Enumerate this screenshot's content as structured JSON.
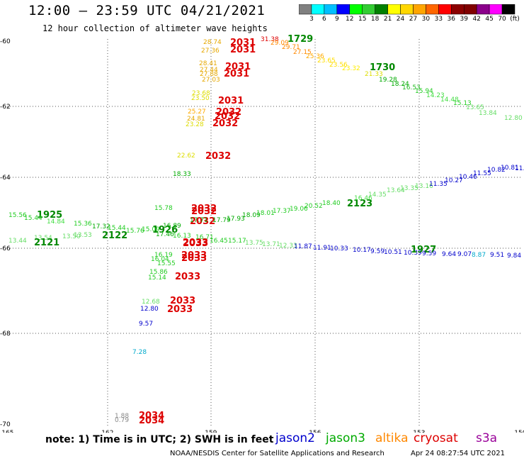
{
  "title": "12:00 – 23:59 UTC 04/21/2021",
  "subtitle": "12 hour collection of altimeter wave heights",
  "colorbar": {
    "ticks": [
      "3",
      "6",
      "9",
      "12",
      "15",
      "18",
      "21",
      "24",
      "27",
      "30",
      "33",
      "36",
      "39",
      "42",
      "45",
      "70",
      "(ft)"
    ],
    "colors": [
      "#808080",
      "#00ffff",
      "#00bfff",
      "#0000ff",
      "#00ff00",
      "#32cd32",
      "#008000",
      "#ffff00",
      "#ffd700",
      "#ffa500",
      "#ff6600",
      "#ff0000",
      "#8b0000",
      "#800000",
      "#8b008b",
      "#ff00ff",
      "#000000"
    ]
  },
  "axes": {
    "lat_labels": [
      "-60",
      "-62",
      "-64",
      "-66",
      "-68",
      "-70"
    ],
    "lon_labels": [
      "-165",
      "-162",
      "-159",
      "-156",
      "-153",
      "-150"
    ]
  },
  "observations": [
    {
      "t": "28.74",
      "c": "#e6a800"
    },
    {
      "t": "2031",
      "c": "#dd0000",
      "big": true
    },
    {
      "t": "27.36",
      "c": "#e6a800"
    },
    {
      "t": "2031",
      "c": "#dd0000",
      "big": true
    },
    {
      "t": "31.38",
      "c": "#dd0000"
    },
    {
      "t": "29.09",
      "c": "#ff8800"
    },
    {
      "t": "1729",
      "c": "#008800",
      "big": true
    },
    {
      "t": "29.71",
      "c": "#ff8800"
    },
    {
      "t": "27.15",
      "c": "#ff8800"
    },
    {
      "t": "25.36",
      "c": "#ffaa00"
    },
    {
      "t": "23.65",
      "c": "#ffdd00"
    },
    {
      "t": "23.56",
      "c": "#ffdd00"
    },
    {
      "t": "23.32",
      "c": "#ffee00"
    },
    {
      "t": "1730",
      "c": "#008800",
      "big": true
    },
    {
      "t": "21.33",
      "c": "#dddd00"
    },
    {
      "t": "19.28",
      "c": "#00aa00"
    },
    {
      "t": "18.24",
      "c": "#00aa00"
    },
    {
      "t": "16.53",
      "c": "#22bb22"
    },
    {
      "t": "15.94",
      "c": "#22cc22"
    },
    {
      "t": "14.23",
      "c": "#44dd44"
    },
    {
      "t": "14.48",
      "c": "#44dd44"
    },
    {
      "t": "15.13",
      "c": "#22cc22"
    },
    {
      "t": "13.65",
      "c": "#66dd66"
    },
    {
      "t": "13.84",
      "c": "#66dd66"
    },
    {
      "t": "12.80",
      "c": "#66dd66"
    },
    {
      "t": "28.41",
      "c": "#e6a800"
    },
    {
      "t": "27.44",
      "c": "#e6a800"
    },
    {
      "t": "2031",
      "c": "#dd0000",
      "big": true
    },
    {
      "t": "27.88",
      "c": "#e6a800"
    },
    {
      "t": "2031",
      "c": "#dd0000",
      "big": true
    },
    {
      "t": "27.03",
      "c": "#e6a800"
    },
    {
      "t": "23.68",
      "c": "#dddd00"
    },
    {
      "t": "23.50",
      "c": "#dddd00"
    },
    {
      "t": "2031",
      "c": "#dd0000",
      "big": true
    },
    {
      "t": "25.27",
      "c": "#ffaa00"
    },
    {
      "t": "2032",
      "c": "#dd0000",
      "big": true
    },
    {
      "t": "24.81",
      "c": "#e6a800"
    },
    {
      "t": "2032",
      "c": "#dd0000",
      "big": true
    },
    {
      "t": "23.28",
      "c": "#dddd00"
    },
    {
      "t": "2032",
      "c": "#dd0000",
      "big": true
    },
    {
      "t": "22.62",
      "c": "#dddd00"
    },
    {
      "t": "2032",
      "c": "#dd0000",
      "big": true
    },
    {
      "t": "18.33",
      "c": "#00aa00"
    },
    {
      "t": "15.56",
      "c": "#22cc22"
    },
    {
      "t": "1925",
      "c": "#008800",
      "big": true
    },
    {
      "t": "15.44",
      "c": "#22cc22"
    },
    {
      "t": "14.84",
      "c": "#44dd44"
    },
    {
      "t": "15.36",
      "c": "#22cc22"
    },
    {
      "t": "17.32",
      "c": "#00aa00"
    },
    {
      "t": "15.44",
      "c": "#22cc22"
    },
    {
      "t": "15.76",
      "c": "#22cc22"
    },
    {
      "t": "13.44",
      "c": "#66dd66"
    },
    {
      "t": "13.54",
      "c": "#66dd66"
    },
    {
      "t": "13.50",
      "c": "#66dd66"
    },
    {
      "t": "13.53",
      "c": "#66dd66"
    },
    {
      "t": "2121",
      "c": "#008800",
      "big": true
    },
    {
      "t": "2122",
      "c": "#008800",
      "big": true
    },
    {
      "t": "15.78",
      "c": "#22cc22"
    },
    {
      "t": "2032",
      "c": "#dd0000",
      "big": true
    },
    {
      "t": "2032",
      "c": "#dd0000",
      "big": true
    },
    {
      "t": "2032",
      "c": "#dd0000",
      "big": true
    },
    {
      "t": "17.79",
      "c": "#00aa00"
    },
    {
      "t": "17.71",
      "c": "#00aa00"
    },
    {
      "t": "17.93",
      "c": "#00aa00"
    },
    {
      "t": "18.09",
      "c": "#00aa00"
    },
    {
      "t": "18.01",
      "c": "#22cc22"
    },
    {
      "t": "17.37",
      "c": "#22cc22"
    },
    {
      "t": "19.06",
      "c": "#22cc22"
    },
    {
      "t": "20.52",
      "c": "#22cc22"
    },
    {
      "t": "18.40",
      "c": "#22cc22"
    },
    {
      "t": "2123",
      "c": "#008800",
      "big": true
    },
    {
      "t": "16.46",
      "c": "#44dd44"
    },
    {
      "t": "14.35",
      "c": "#66dd66"
    },
    {
      "t": "13.64",
      "c": "#66dd66"
    },
    {
      "t": "13.35",
      "c": "#66dd66"
    },
    {
      "t": "13.16",
      "c": "#66dd66"
    },
    {
      "t": "11.35",
      "c": "#0000cc"
    },
    {
      "t": "10.27",
      "c": "#0000cc"
    },
    {
      "t": "10.46",
      "c": "#0000cc"
    },
    {
      "t": "11.55",
      "c": "#0000cc"
    },
    {
      "t": "10.82",
      "c": "#0000cc"
    },
    {
      "t": "10.81",
      "c": "#0000cc"
    },
    {
      "t": "11.54",
      "c": "#0000cc"
    },
    {
      "t": "1926",
      "c": "#008800",
      "big": true
    },
    {
      "t": "15.09",
      "c": "#22cc22"
    },
    {
      "t": "16.89",
      "c": "#00aa00"
    },
    {
      "t": "2033",
      "c": "#dd0000",
      "big": true
    },
    {
      "t": "17.46",
      "c": "#00aa00"
    },
    {
      "t": "16.13",
      "c": "#22cc22"
    },
    {
      "t": "16.71",
      "c": "#22cc22"
    },
    {
      "t": "16.45",
      "c": "#22cc22"
    },
    {
      "t": "15.17",
      "c": "#22cc22"
    },
    {
      "t": "13.75",
      "c": "#66dd66"
    },
    {
      "t": "13.71",
      "c": "#66dd66"
    },
    {
      "t": "12.33",
      "c": "#66dd66"
    },
    {
      "t": "11.87",
      "c": "#0000cc"
    },
    {
      "t": "11.91",
      "c": "#0000cc"
    },
    {
      "t": "10.33",
      "c": "#0000cc"
    },
    {
      "t": "10.17",
      "c": "#0000cc"
    },
    {
      "t": "9.59",
      "c": "#0000cc"
    },
    {
      "t": "10.51",
      "c": "#0000cc"
    },
    {
      "t": "10.39",
      "c": "#0000cc"
    },
    {
      "t": "1927",
      "c": "#008800",
      "big": true
    },
    {
      "t": "9.59",
      "c": "#0000cc"
    },
    {
      "t": "9.64",
      "c": "#0000cc"
    },
    {
      "t": "9.07",
      "c": "#0000cc"
    },
    {
      "t": "8.87",
      "c": "#00aacc"
    },
    {
      "t": "9.51",
      "c": "#0000cc"
    },
    {
      "t": "9.84",
      "c": "#0000cc"
    },
    {
      "t": "15.55",
      "c": "#22cc22"
    },
    {
      "t": "2033",
      "c": "#dd0000",
      "big": true
    },
    {
      "t": "16.19",
      "c": "#22cc22"
    },
    {
      "t": "2033",
      "c": "#dd0000",
      "big": true
    },
    {
      "t": "16.04",
      "c": "#22cc22"
    },
    {
      "t": "2033",
      "c": "#dd0000",
      "big": true
    },
    {
      "t": "15.86",
      "c": "#22cc22"
    },
    {
      "t": "15.14",
      "c": "#22cc22"
    },
    {
      "t": "2033",
      "c": "#dd0000",
      "big": true
    },
    {
      "t": "12.68",
      "c": "#66dd66"
    },
    {
      "t": "2033",
      "c": "#dd0000",
      "big": true
    },
    {
      "t": "12.80",
      "c": "#0000cc"
    },
    {
      "t": "2033",
      "c": "#dd0000",
      "big": true
    },
    {
      "t": "9.57",
      "c": "#0000cc"
    },
    {
      "t": "7.28",
      "c": "#00aacc"
    },
    {
      "t": "1.88",
      "c": "#888888"
    },
    {
      "t": "0.79",
      "c": "#888888"
    },
    {
      "t": "2034",
      "c": "#dd0000",
      "big": true
    },
    {
      "t": "2034",
      "c": "#dd0000",
      "big": true
    }
  ],
  "note": "note: 1) Time is in UTC; 2) SWH is in feet",
  "satellites": [
    {
      "name": "jason2",
      "color": "#0000cc"
    },
    {
      "name": "jason3",
      "color": "#00aa00"
    },
    {
      "name": "altika",
      "color": "#ff8800"
    },
    {
      "name": "cryosat",
      "color": "#dd0000"
    },
    {
      "name": "s3a",
      "color": "#990099"
    }
  ],
  "credit": "NOAA/NESDIS Center for Satellite Applications and Research",
  "timestamp": "Apr 24 08:27:54 UTC 2021"
}
